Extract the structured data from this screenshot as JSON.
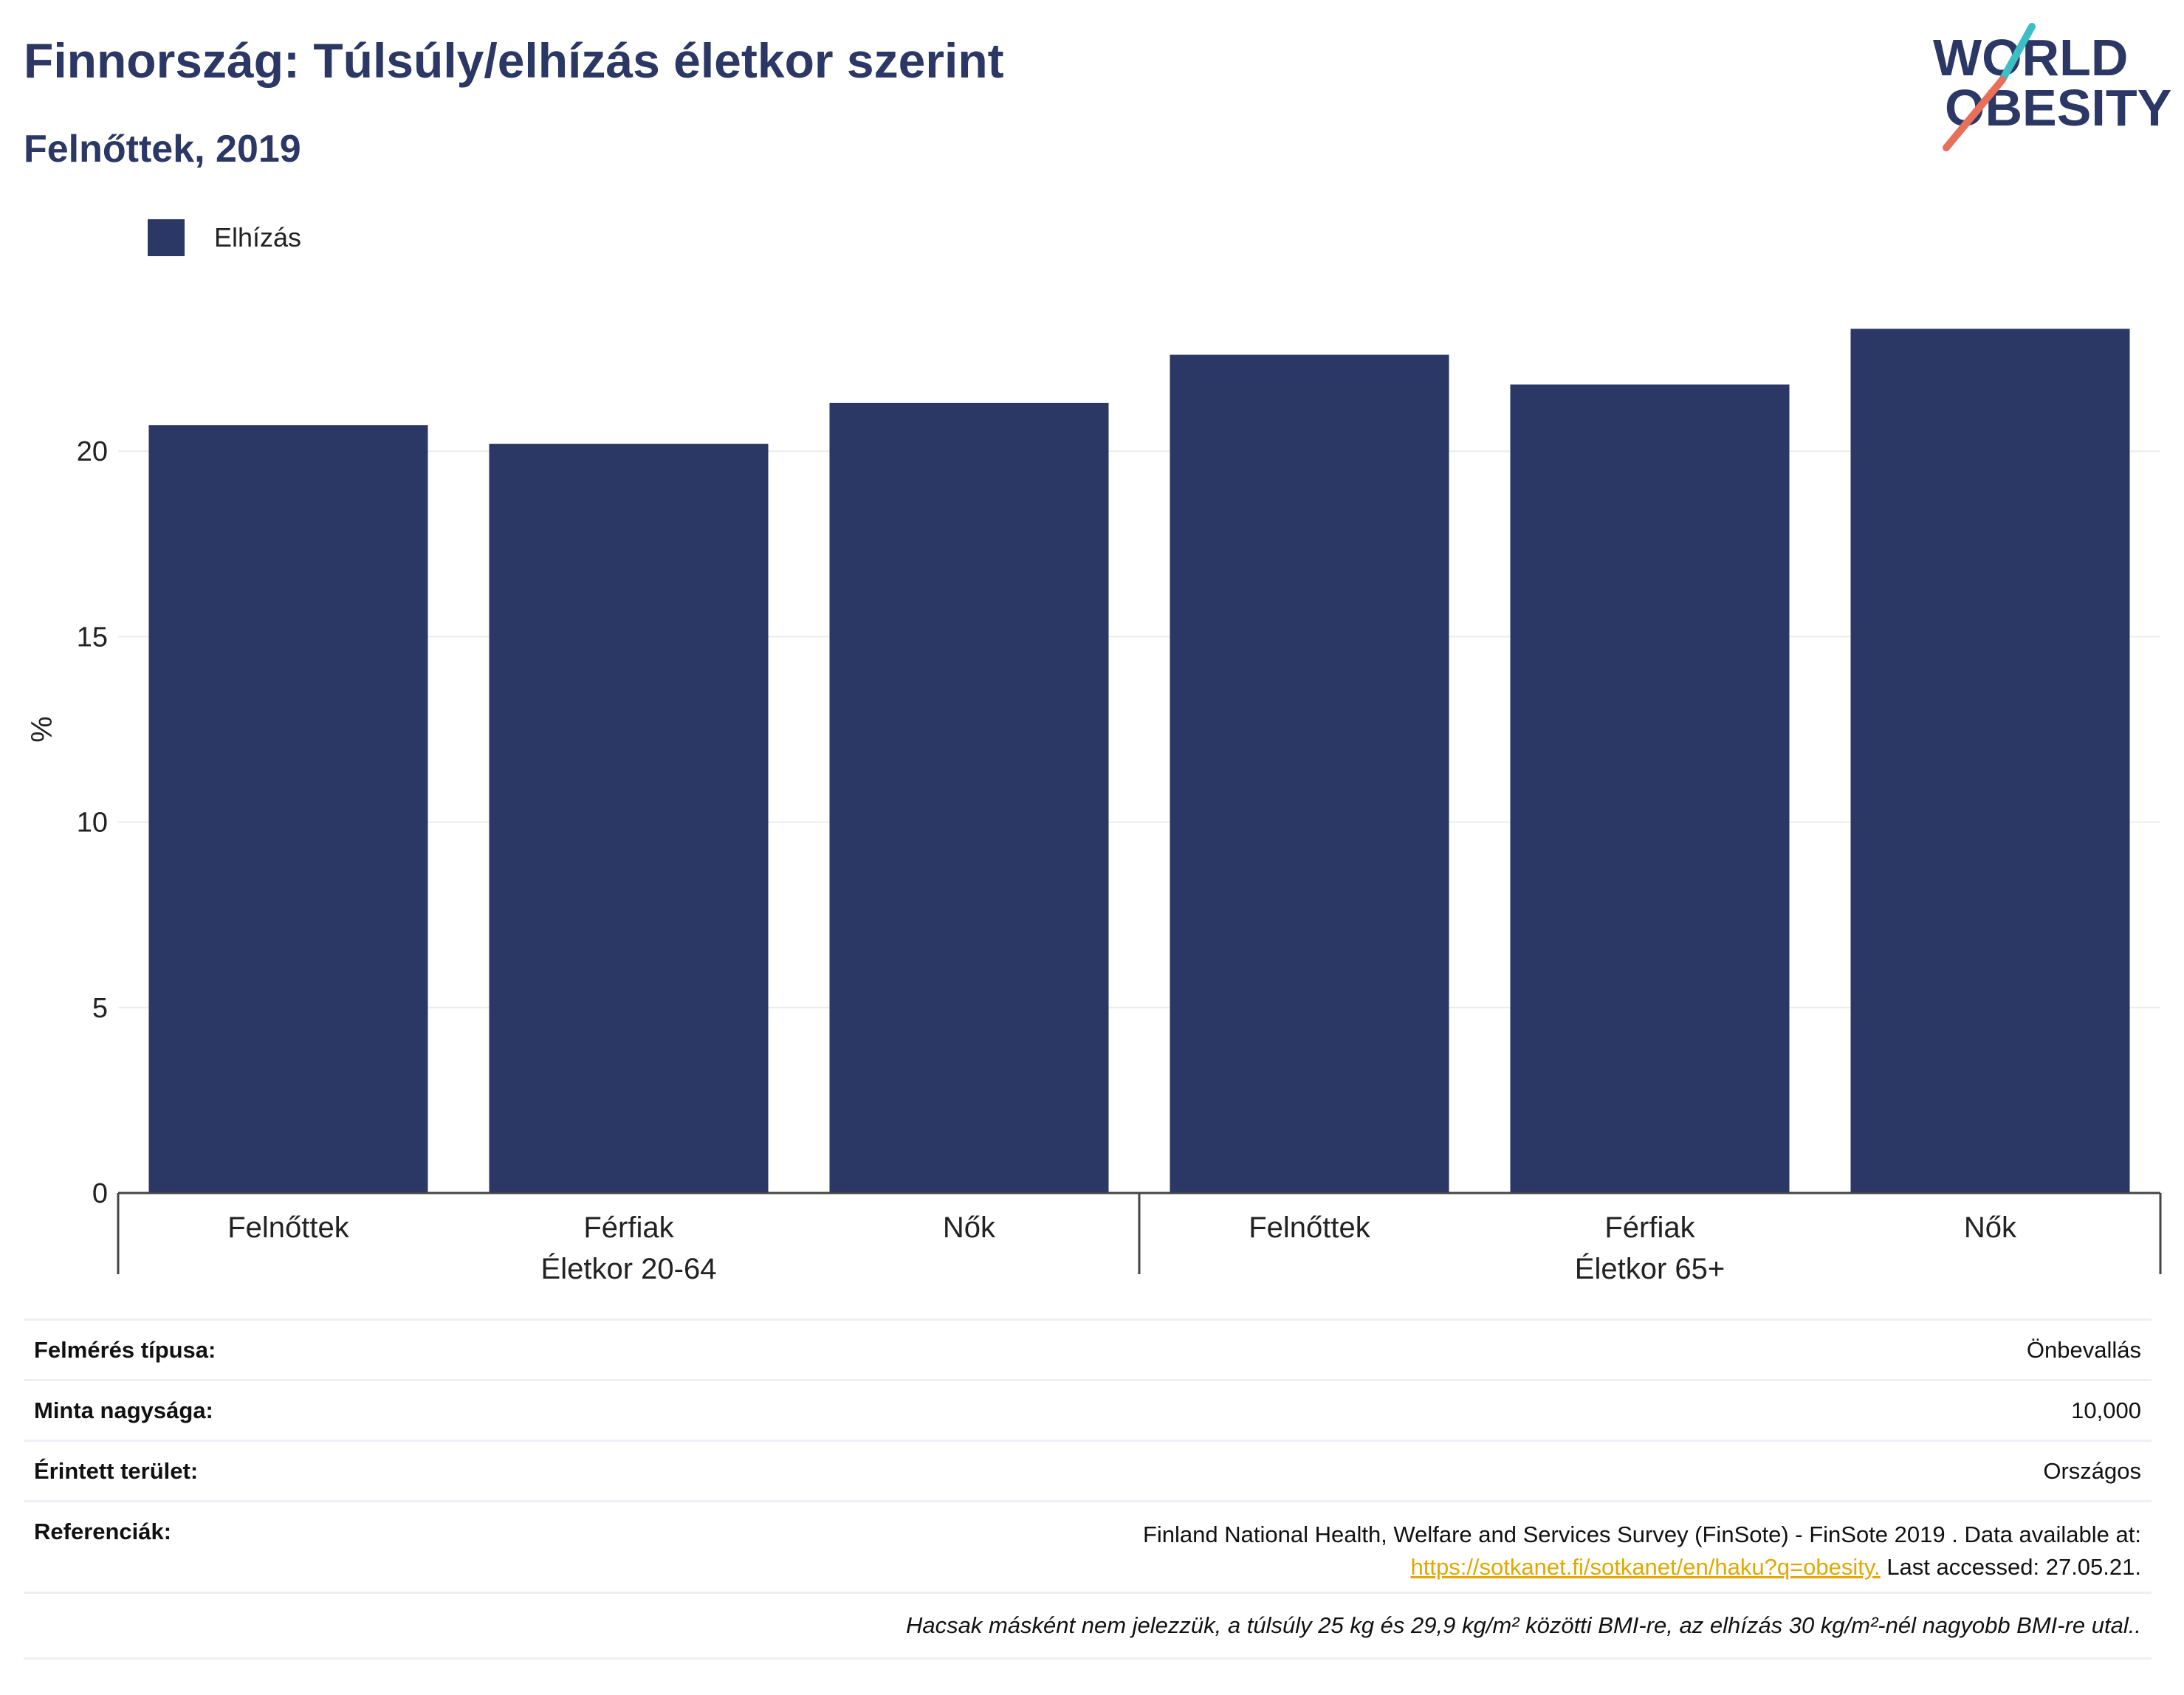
{
  "title": "Finnország: Túlsúly/elhízás életkor szerint",
  "subtitle": "Felnőttek, 2019",
  "logo": {
    "line1": "WORLD",
    "line2": "OBESITY",
    "colors": [
      "#2b3764",
      "#e8705a",
      "#3bbfc4"
    ]
  },
  "colors": {
    "bar": "#2b3764",
    "grid": "#ececec",
    "axis": "#444444"
  },
  "chart_data": {
    "type": "bar",
    "series": [
      {
        "name": "Elhízás",
        "values": [
          20.7,
          20.2,
          21.3,
          22.6,
          21.8,
          23.3
        ]
      }
    ],
    "categories": [
      "Felnőttek",
      "Férfiak",
      "Nők",
      "Felnőttek",
      "Férfiak",
      "Nők"
    ],
    "groups": [
      {
        "label": "Életkor 20-64",
        "count": 3
      },
      {
        "label": "Életkor 65+",
        "count": 3
      }
    ],
    "ylabel": "%",
    "ylim": [
      0,
      25
    ],
    "yticks": [
      0,
      5,
      10,
      15,
      20
    ],
    "grid": true,
    "legend": "top-left"
  },
  "info": {
    "survey_type_label": "Felmérés típusa:",
    "survey_type_value": "Önbevallás",
    "sample_size_label": "Minta nagysága:",
    "sample_size_value": "10,000",
    "area_label": "Érintett terület:",
    "area_value": "Országos",
    "references_label": "Referenciák:",
    "references_text": "Finland National Health, Welfare and Services Survey (FinSote) - FinSote 2019 . Data available at:",
    "references_link": "https://sotkanet.fi/sotkanet/en/haku?q=obesity.",
    "references_accessed": " Last accessed: 27.05.21.",
    "note": "Hacsak másként nem jelezzük, a túlsúly 25 kg és 29,9 kg/m² közötti BMI-re, az elhízás 30 kg/m²-nél nagyobb BMI-re utal.."
  }
}
